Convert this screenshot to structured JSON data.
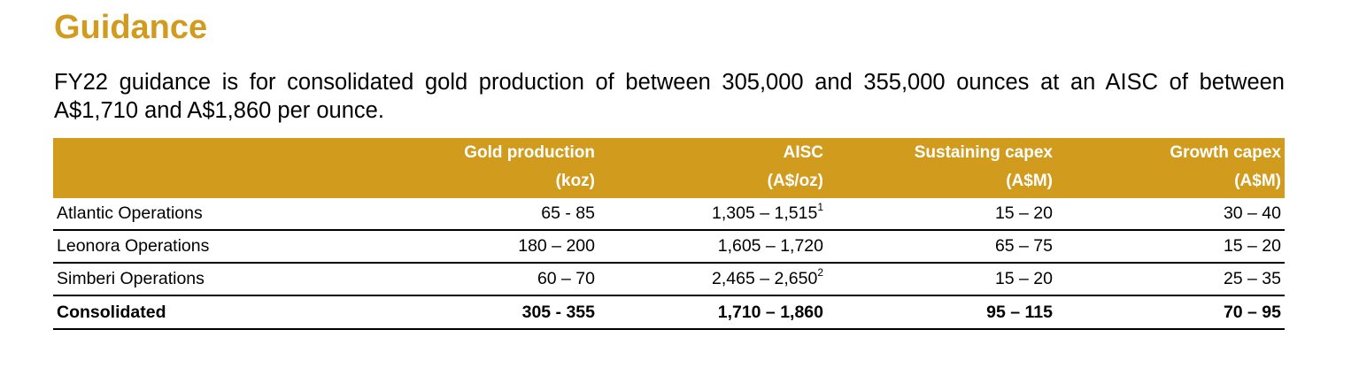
{
  "page": {
    "title": "Guidance",
    "intro": "FY22 guidance is for consolidated gold production of between 305,000 and 355,000 ounces at an AISC of between A$1,710 and A$1,860 per ounce."
  },
  "colors": {
    "accent": "#d19b1e",
    "header_text": "#ffffff"
  },
  "table": {
    "headers": [
      {
        "line1": "",
        "line2": ""
      },
      {
        "line1": "Gold production",
        "line2": "(koz)"
      },
      {
        "line1": "AISC",
        "line2": "(A$/oz)"
      },
      {
        "line1": "Sustaining capex",
        "line2": "(A$M)"
      },
      {
        "line1": "Growth capex",
        "line2": "(A$M)"
      }
    ],
    "rows": [
      {
        "operation": "Atlantic Operations",
        "gold_production": "65 - 85",
        "aisc": "1,305 – 1,515",
        "aisc_note": "1",
        "sustaining_capex": "15 – 20",
        "growth_capex": "30 – 40"
      },
      {
        "operation": "Leonora Operations",
        "gold_production": "180 – 200",
        "aisc": "1,605 – 1,720",
        "aisc_note": "",
        "sustaining_capex": "65 – 75",
        "growth_capex": "15 – 20"
      },
      {
        "operation": "Simberi Operations",
        "gold_production": "60 – 70",
        "aisc": "2,465 – 2,650",
        "aisc_note": "2",
        "sustaining_capex": "15 – 20",
        "growth_capex": "25 – 35"
      }
    ],
    "total": {
      "operation": "Consolidated",
      "gold_production": "305 - 355",
      "aisc": "1,710 – 1,860",
      "sustaining_capex": "95 – 115",
      "growth_capex": "70 – 95"
    }
  }
}
